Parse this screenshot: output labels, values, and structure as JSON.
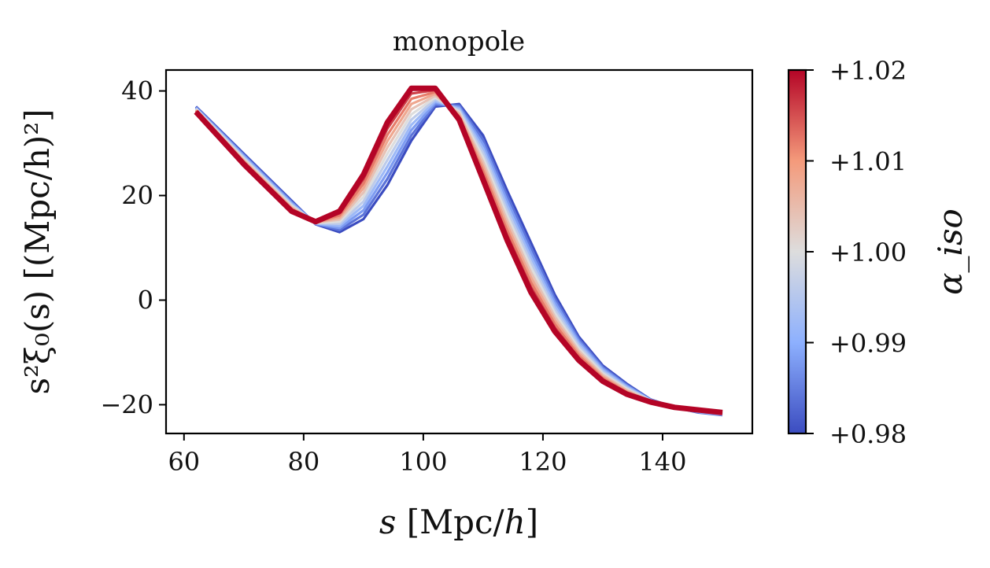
{
  "chart_data": {
    "type": "line",
    "title": "monopole",
    "xlabel": {
      "var": "s",
      "units": " [Mpc/",
      "var2": "h",
      "close": "]"
    },
    "ylabel": "s²ξ₀(s) [(Mpc/h)²]",
    "xlim": [
      57,
      155
    ],
    "ylim": [
      -25.5,
      44
    ],
    "xticks": [
      60,
      80,
      100,
      120,
      140
    ],
    "yticks": [
      -20,
      0,
      20,
      40
    ],
    "xtick_labels": [
      "60",
      "80",
      "100",
      "120",
      "140"
    ],
    "ytick_labels": [
      "−20",
      "0",
      "20",
      "40"
    ],
    "x": [
      62,
      66,
      70,
      74,
      78,
      82,
      86,
      90,
      94,
      98,
      102,
      106,
      110,
      114,
      118,
      122,
      126,
      130,
      134,
      138,
      142,
      146,
      150
    ],
    "series_endpoints": [
      {
        "alpha": 0.98,
        "values": [
          37,
          32.5,
          28,
          23.5,
          19,
          14.5,
          13,
          15.5,
          22,
          30.5,
          37,
          37.5,
          31.5,
          21,
          11,
          1,
          -7,
          -12.5,
          -16,
          -19,
          -20.5,
          -21.5,
          -22
        ]
      },
      {
        "alpha": 1.02,
        "values": [
          36,
          31,
          26,
          21.5,
          17,
          15,
          17,
          24,
          34,
          40.5,
          40.5,
          34.5,
          23,
          11.5,
          1.5,
          -6,
          -11.5,
          -15.5,
          -18,
          -19.5,
          -20.5,
          -21,
          -21.5
        ]
      }
    ],
    "n_curves": 11,
    "colorbar": {
      "label": "α_iso",
      "range": [
        0.98,
        1.02
      ],
      "ticks": [
        0.98,
        0.99,
        1.0,
        1.01,
        1.02
      ],
      "tick_labels": [
        "+0.98",
        "+0.99",
        "+1.00",
        "+1.01",
        "+1.02"
      ],
      "colormap": "coolwarm"
    },
    "grid": false
  }
}
